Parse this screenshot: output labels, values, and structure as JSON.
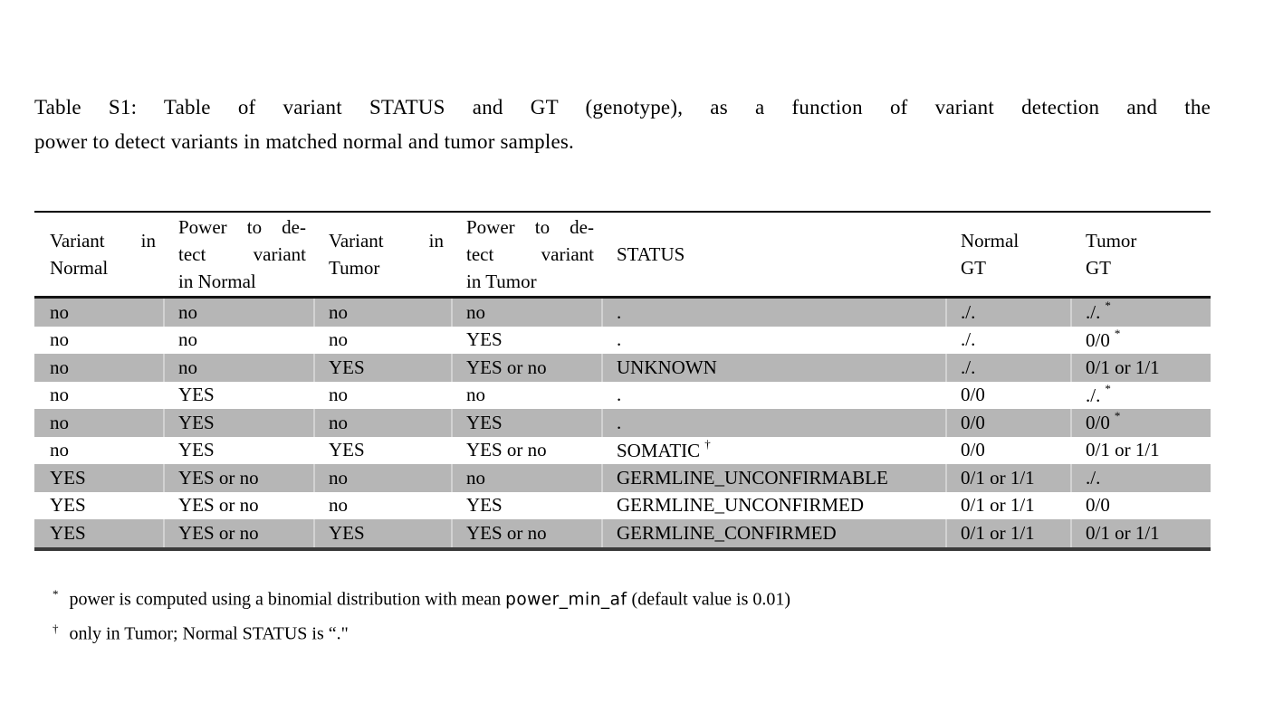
{
  "caption": {
    "line1": "Table S1: Table of variant STATUS and GT (genotype), as a function of variant detection and the",
    "line2": "power to detect variants in matched normal and tumor samples."
  },
  "table": {
    "shade_color": "#b6b6b6",
    "columns": [
      {
        "lines": [
          "Variant in",
          "Normal"
        ]
      },
      {
        "lines": [
          "Power to de-",
          "tect variant",
          "in Normal"
        ]
      },
      {
        "lines": [
          "Variant in",
          "Tumor"
        ]
      },
      {
        "lines": [
          "Power to de-",
          "tect variant",
          "in Tumor"
        ]
      },
      {
        "lines": [
          "STATUS"
        ]
      },
      {
        "lines": [
          "Normal",
          "GT"
        ]
      },
      {
        "lines": [
          "Tumor",
          "GT"
        ]
      }
    ],
    "rows": [
      {
        "shaded": true,
        "cells": [
          "no",
          "no",
          "no",
          "no",
          ".",
          "./.",
          {
            "t": "./.",
            "s": "*"
          }
        ]
      },
      {
        "shaded": false,
        "cells": [
          "no",
          "no",
          "no",
          "YES",
          ".",
          "./.",
          {
            "t": "0/0",
            "s": "*"
          }
        ]
      },
      {
        "shaded": true,
        "cells": [
          "no",
          "no",
          "YES",
          "YES or no",
          "UNKNOWN",
          "./.",
          "0/1 or 1/1"
        ]
      },
      {
        "shaded": false,
        "cells": [
          "no",
          "YES",
          "no",
          "no",
          ".",
          "0/0",
          {
            "t": "./.",
            "s": "*"
          }
        ]
      },
      {
        "shaded": true,
        "cells": [
          "no",
          "YES",
          "no",
          "YES",
          ".",
          "0/0",
          {
            "t": "0/0",
            "s": "*"
          }
        ]
      },
      {
        "shaded": false,
        "cells": [
          "no",
          "YES",
          "YES",
          "YES or no",
          {
            "t": "SOMATIC",
            "s": "†"
          },
          "0/0",
          "0/1 or 1/1"
        ]
      },
      {
        "shaded": true,
        "cells": [
          "YES",
          "YES or no",
          "no",
          "no",
          "GERMLINE_UNCONFIRMABLE",
          "0/1 or 1/1",
          "./."
        ]
      },
      {
        "shaded": false,
        "cells": [
          "YES",
          "YES or no",
          "no",
          "YES",
          "GERMLINE_UNCONFIRMED",
          "0/1 or 1/1",
          "0/0"
        ]
      },
      {
        "shaded": true,
        "cells": [
          "YES",
          "YES or no",
          "YES",
          "YES or no",
          "GERMLINE_CONFIRMED",
          "0/1 or 1/1",
          "0/1 or 1/1"
        ]
      }
    ]
  },
  "footnotes": [
    {
      "marker": "*",
      "text_before": "power is computed using a binomial distribution with mean ",
      "code": "power_min_af",
      "text_after": " (default value is 0.01)"
    },
    {
      "marker": "†",
      "text_before": "only in Tumor; Normal STATUS is “.\"",
      "code": "",
      "text_after": ""
    }
  ]
}
